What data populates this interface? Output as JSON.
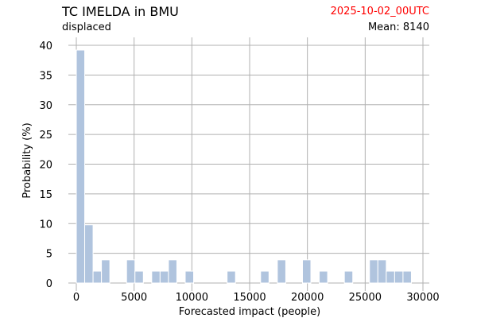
{
  "header": {
    "title": "TC IMELDA in BMU",
    "subtitle": "displaced",
    "run": "2025-10-02_00UTC",
    "mean_label": "Mean:",
    "mean_value": "8140"
  },
  "colors": {
    "bar": "#b0c4de",
    "run_text": "#ff0000",
    "grid": "#b0b0b0"
  },
  "chart_data": {
    "type": "bar",
    "title": "TC IMELDA in BMU",
    "xlabel": "Forecasted impact (people)",
    "ylabel": "Probability (%)",
    "xlim": [
      0,
      30000
    ],
    "ylim": [
      0,
      40
    ],
    "xticks": [
      0,
      5000,
      10000,
      15000,
      20000,
      25000,
      30000
    ],
    "yticks": [
      0,
      5,
      10,
      15,
      20,
      25,
      30,
      35,
      40
    ],
    "grid": true,
    "bin_width": 725,
    "bins": [
      {
        "start": 0,
        "value": 39.2
      },
      {
        "start": 725,
        "value": 9.8
      },
      {
        "start": 1450,
        "value": 2.0
      },
      {
        "start": 2175,
        "value": 3.9
      },
      {
        "start": 4350,
        "value": 3.9
      },
      {
        "start": 5075,
        "value": 2.0
      },
      {
        "start": 6525,
        "value": 2.0
      },
      {
        "start": 7250,
        "value": 2.0
      },
      {
        "start": 7975,
        "value": 3.9
      },
      {
        "start": 9425,
        "value": 2.0
      },
      {
        "start": 13050,
        "value": 2.0
      },
      {
        "start": 15950,
        "value": 2.0
      },
      {
        "start": 17400,
        "value": 3.9
      },
      {
        "start": 19575,
        "value": 3.9
      },
      {
        "start": 21025,
        "value": 2.0
      },
      {
        "start": 23200,
        "value": 2.0
      },
      {
        "start": 25375,
        "value": 3.9
      },
      {
        "start": 26100,
        "value": 3.9
      },
      {
        "start": 26825,
        "value": 2.0
      },
      {
        "start": 27550,
        "value": 2.0
      },
      {
        "start": 28275,
        "value": 2.0
      }
    ]
  }
}
